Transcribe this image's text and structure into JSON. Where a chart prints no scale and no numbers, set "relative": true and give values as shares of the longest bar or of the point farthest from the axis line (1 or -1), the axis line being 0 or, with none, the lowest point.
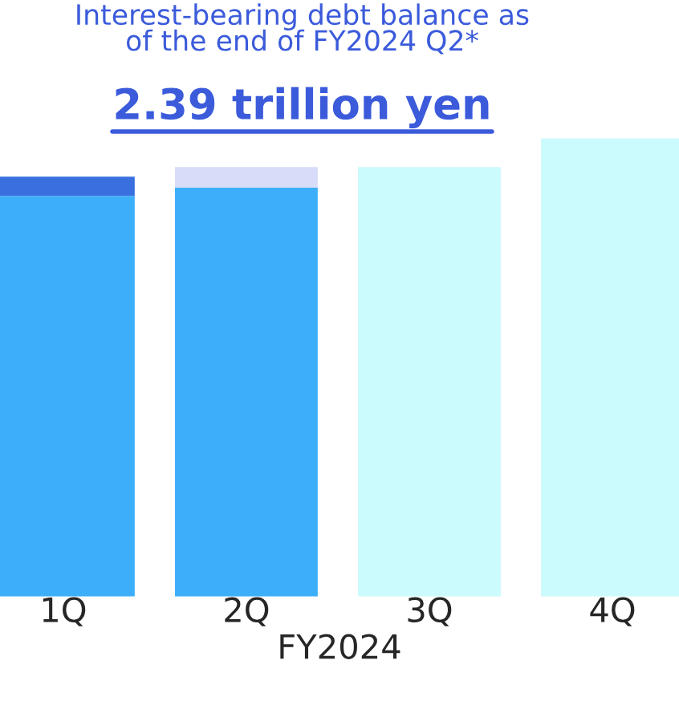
{
  "chart_data": {
    "type": "bar",
    "title": "Interest-bearing debt balance as\nof the end of FY2024 Q2*",
    "subtitle": "2.39 trillion yen",
    "xlabel": "FY2024",
    "categories": [
      "1Q",
      "2Q",
      "3Q",
      "4Q"
    ],
    "relative": true,
    "stacked": true,
    "series": [
      {
        "colors": [
          "#3daffa",
          "#3daffa",
          "#ccfbfe",
          "#ccfbfe"
        ],
        "values": [
          0.874,
          0.892,
          0.937,
          1.0
        ]
      },
      {
        "colors": [
          "#3a6fe0",
          "#d8dcf8",
          "#ccfbfe",
          "#ccfbfe"
        ],
        "values": [
          0.042,
          0.045,
          null,
          null
        ]
      }
    ]
  }
}
